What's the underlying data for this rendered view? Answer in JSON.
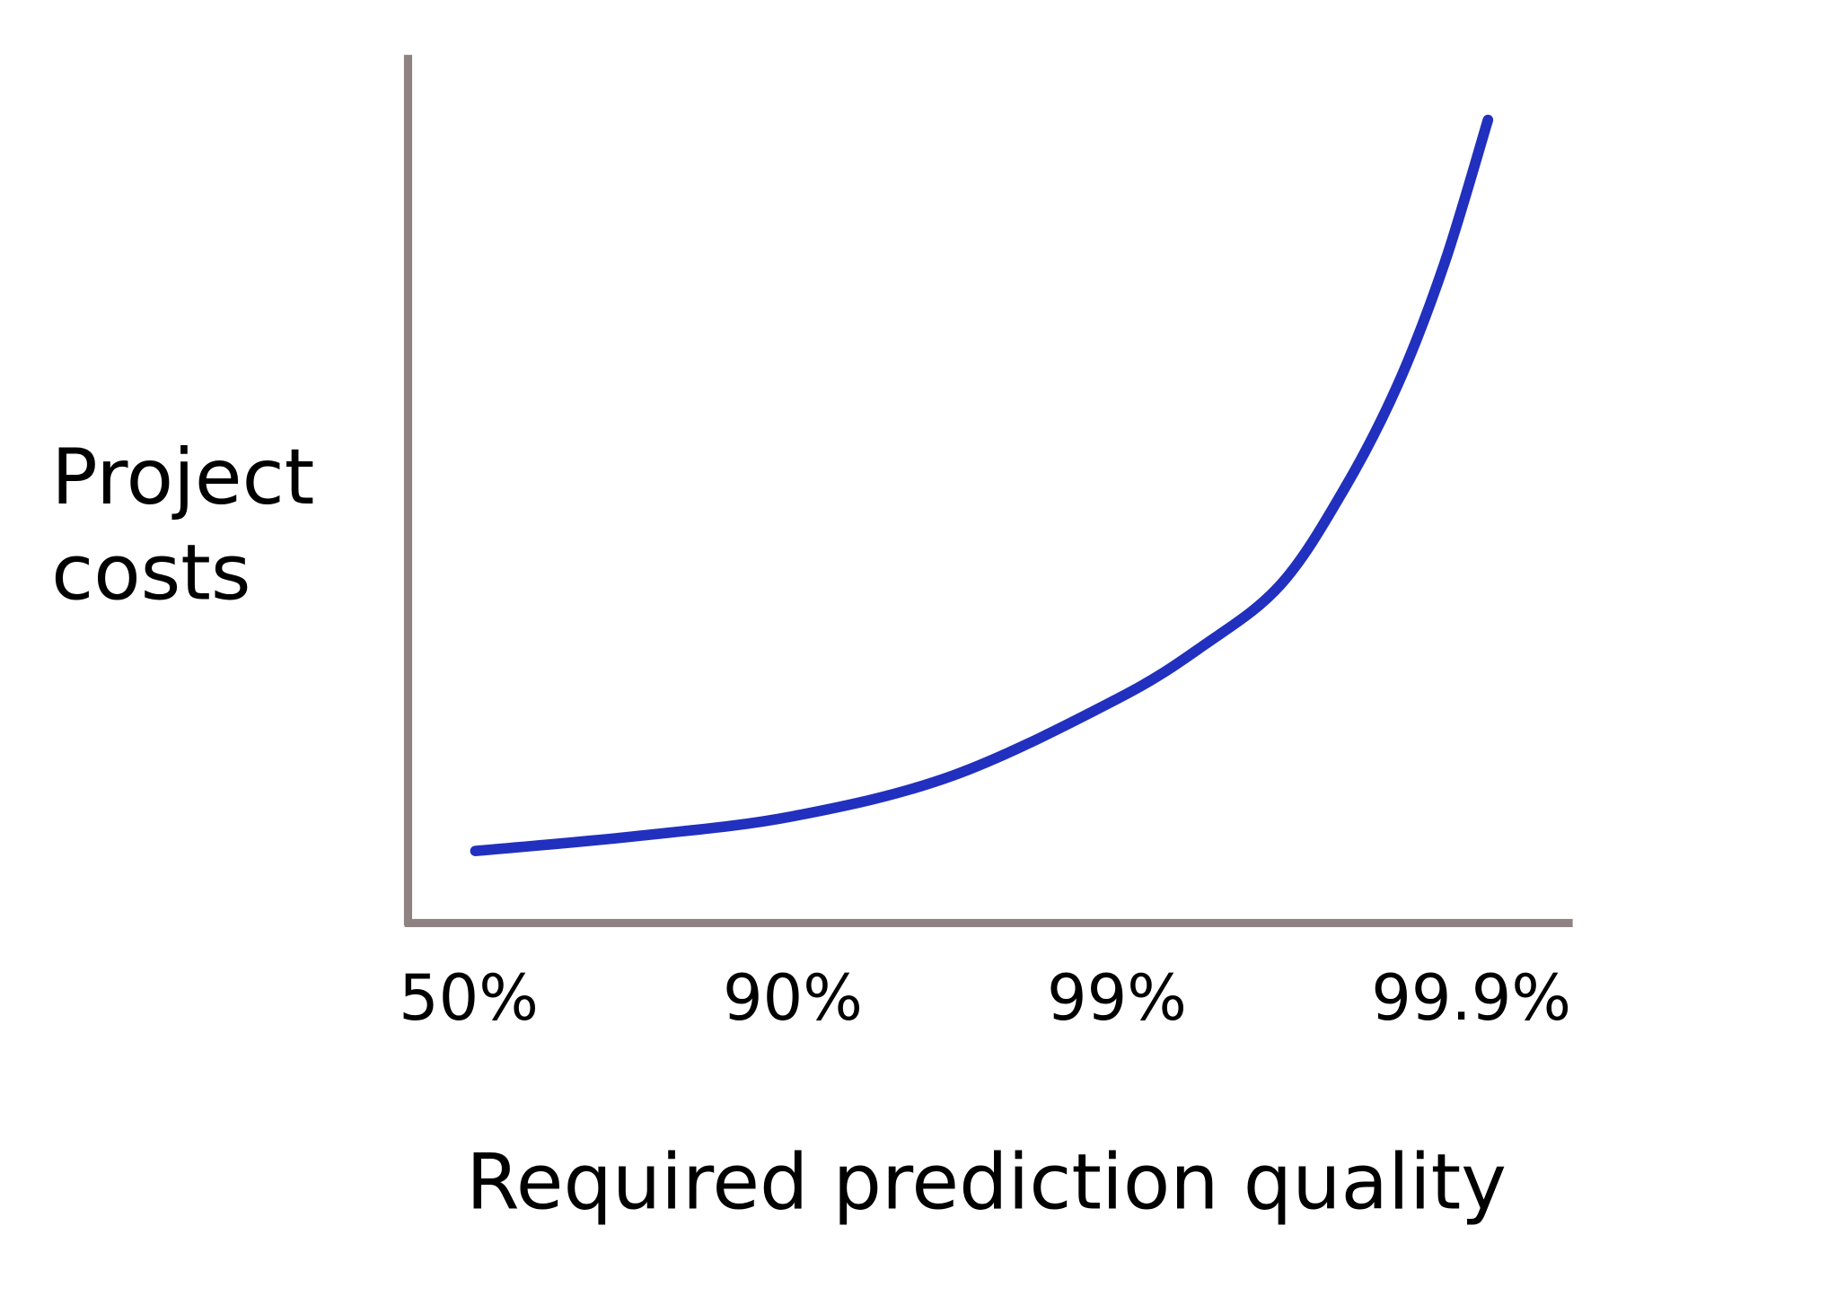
{
  "chart_data": {
    "type": "line",
    "title": "",
    "xlabel": "Required prediction quality",
    "ylabel_lines": [
      "Project",
      "costs"
    ],
    "x_tick_labels": [
      "50%",
      "90%",
      "99%",
      "99.9%"
    ],
    "x_scale": "categorical positions of tick labels (index 0–3)",
    "y_ticks": [],
    "ylim": [
      0,
      1
    ],
    "grid": false,
    "legend": "none",
    "series": [
      {
        "x": [
          0.02,
          0.5,
          0.97,
          1.45,
          1.94,
          2.2,
          2.43,
          2.62,
          2.78,
          2.92,
          3.05
        ],
        "y": [
          0.083,
          0.1,
          0.123,
          0.17,
          0.258,
          0.32,
          0.39,
          0.5,
          0.62,
          0.76,
          0.925
        ]
      }
    ],
    "colors": {
      "line": "#2130BE",
      "axis": "#8E8282",
      "text": "#000000"
    }
  }
}
